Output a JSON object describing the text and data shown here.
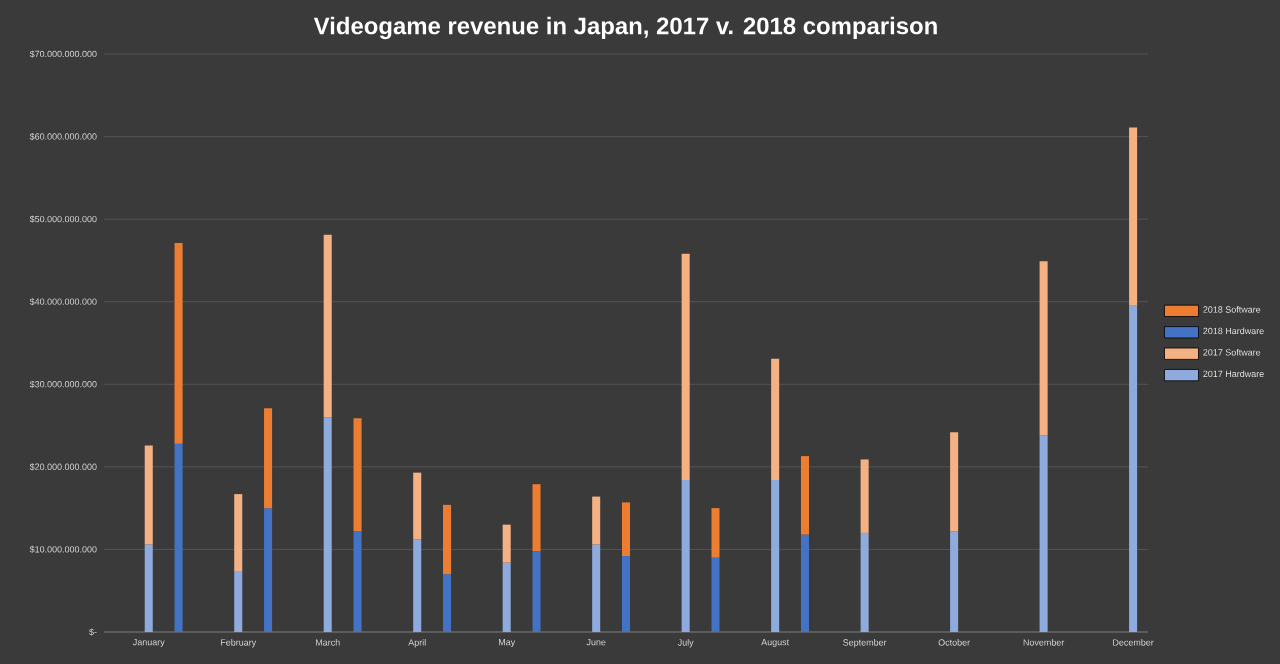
{
  "chart_data": {
    "type": "bar",
    "stacked": true,
    "title": "Videogame revenue in Japan, 2017 v. 2018 comparison",
    "categories": [
      null,
      "January",
      null,
      null,
      "February",
      null,
      null,
      "March",
      null,
      null,
      "April",
      null,
      null,
      "May",
      null,
      null,
      "June",
      null,
      null,
      "July",
      null,
      null,
      "August",
      null,
      null,
      "September",
      null,
      null,
      "October",
      null,
      null,
      "November",
      null,
      null,
      "December"
    ],
    "series": [
      {
        "name": "2017 Hardware",
        "color": "#8faadc",
        "values": [
          null,
          10600000000,
          null,
          null,
          7300000000,
          null,
          null,
          26000000000,
          null,
          null,
          11200000000,
          null,
          null,
          8400000000,
          null,
          null,
          10600000000,
          null,
          null,
          18400000000,
          null,
          null,
          18400000000,
          null,
          null,
          12000000000,
          null,
          null,
          12200000000,
          null,
          null,
          23800000000,
          null,
          null,
          39500000000
        ]
      },
      {
        "name": "2017 Software",
        "color": "#f4b183",
        "values": [
          null,
          12000000000,
          null,
          null,
          9400000000,
          null,
          null,
          22100000000,
          null,
          null,
          8100000000,
          null,
          null,
          4600000000,
          null,
          null,
          5800000000,
          null,
          null,
          27400000000,
          null,
          null,
          14700000000,
          null,
          null,
          8900000000,
          null,
          null,
          12000000000,
          null,
          null,
          21100000000,
          null,
          null,
          21600000000
        ]
      },
      {
        "name": "2018 Hardware",
        "color": "#4472c4",
        "values": [
          null,
          null,
          22800000000,
          null,
          null,
          15000000000,
          null,
          null,
          12200000000,
          null,
          null,
          7000000000,
          null,
          null,
          9800000000,
          null,
          null,
          9200000000,
          null,
          null,
          9000000000,
          null,
          null,
          11800000000,
          null,
          null,
          null,
          null,
          null,
          null,
          null,
          null,
          null,
          null,
          null
        ]
      },
      {
        "name": "2018 Software",
        "color": "#ed7d31",
        "values": [
          null,
          null,
          24300000000,
          null,
          null,
          12100000000,
          null,
          null,
          13700000000,
          null,
          null,
          8400000000,
          null,
          null,
          8100000000,
          null,
          null,
          6500000000,
          null,
          null,
          6000000000,
          null,
          null,
          9500000000,
          null,
          null,
          null,
          null,
          null,
          null,
          null,
          null,
          null,
          null,
          null
        ]
      }
    ],
    "ylim": [
      0,
      70000000000
    ],
    "yticks": [
      {
        "value": 0,
        "label": "$-"
      },
      {
        "value": 10000000000,
        "label": "$10.000.000.000"
      },
      {
        "value": 20000000000,
        "label": "$20.000.000.000"
      },
      {
        "value": 30000000000,
        "label": "$30.000.000.000"
      },
      {
        "value": 40000000000,
        "label": "$40.000.000.000"
      },
      {
        "value": 50000000000,
        "label": "$50.000.000.000"
      },
      {
        "value": 60000000000,
        "label": "$60.000.000.000"
      },
      {
        "value": 70000000000,
        "label": "$70.000.000.000"
      }
    ],
    "grid": "y",
    "legend": "right"
  }
}
